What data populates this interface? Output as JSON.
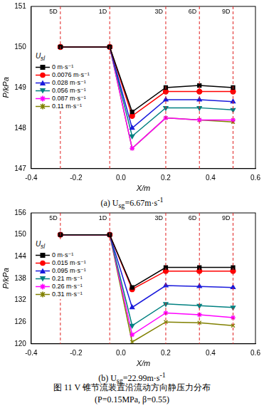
{
  "chart_data": [
    {
      "type": "line",
      "x_label": "X/m",
      "y_label": "P/kPa",
      "caption": [
        {
          "text": "(a)  U"
        },
        {
          "sub": "sg"
        },
        {
          "text": "=6.67m·s"
        },
        {
          "sup": "-1"
        }
      ],
      "legend_title": [
        {
          "text": "U"
        },
        {
          "sub": "sl"
        }
      ],
      "legend": "upper left",
      "grid": false,
      "x": [
        -0.27,
        -0.05,
        0.05,
        0.2,
        0.35,
        0.5
      ],
      "xlim": [
        -0.4,
        0.6
      ],
      "xticks": [
        -0.4,
        -0.2,
        {
          "value": 0,
          "label": "0.0"
        },
        0.2,
        0.4,
        0.6
      ],
      "ylim": [
        147,
        151
      ],
      "yticks": [
        147,
        148,
        149,
        150,
        151
      ],
      "annotations": [
        {
          "x": -0.27,
          "label": "5D"
        },
        {
          "x": -0.05,
          "label": "1D"
        },
        {
          "x": 0.2,
          "label": "3D"
        },
        {
          "x": 0.35,
          "label": "6D"
        },
        {
          "x": 0.5,
          "label": "9D"
        }
      ],
      "series": [
        {
          "name": "0 m·s⁻¹",
          "color": "#000000",
          "marker": "square",
          "values": [
            150.0,
            150.0,
            148.4,
            149.0,
            149.05,
            149.0
          ]
        },
        {
          "name": "0.0076 m·s⁻¹",
          "color": "#ff0000",
          "marker": "circle",
          "values": [
            150.0,
            150.0,
            148.3,
            148.9,
            148.9,
            148.9
          ]
        },
        {
          "name": "0.028 m·s⁻¹",
          "color": "#1a1adc",
          "marker": "triangle",
          "values": [
            150.0,
            150.0,
            148.0,
            148.7,
            148.7,
            148.65
          ]
        },
        {
          "name": "0.056 m·s⁻¹",
          "color": "#008080",
          "marker": "triangle-down",
          "values": [
            150.0,
            150.0,
            147.8,
            148.5,
            148.5,
            148.45
          ]
        },
        {
          "name": "0.087 m·s⁻¹",
          "color": "#ff00ff",
          "marker": "star",
          "values": [
            150.0,
            150.0,
            147.5,
            148.25,
            148.2,
            148.2
          ]
        },
        {
          "name": "0.11 m·s⁻¹",
          "color": "#808000",
          "marker": "asterisk",
          "values": [
            150.0,
            150.0,
            147.5,
            148.25,
            148.2,
            148.15
          ]
        }
      ]
    },
    {
      "type": "line",
      "x_label": "X/m",
      "y_label": "P/kPa",
      "caption": [
        {
          "text": "(b)  U"
        },
        {
          "sub": "sg"
        },
        {
          "text": "=22.99m·s"
        },
        {
          "sup": "-1"
        }
      ],
      "legend_title": [
        {
          "text": "U"
        },
        {
          "sub": "sl"
        }
      ],
      "legend": "upper left",
      "grid": false,
      "x": [
        -0.27,
        -0.05,
        0.05,
        0.2,
        0.35,
        0.5
      ],
      "xlim": [
        -0.4,
        0.6
      ],
      "xticks": [
        -0.4,
        -0.2,
        {
          "value": 0,
          "label": "0.0"
        },
        0.2,
        0.4,
        0.6
      ],
      "ylim": [
        120,
        156
      ],
      "yticks": [
        120,
        126,
        132,
        138,
        144,
        150,
        156
      ],
      "annotations": [
        {
          "x": -0.27,
          "label": "5D"
        },
        {
          "x": -0.05,
          "label": "1D"
        },
        {
          "x": 0.2,
          "label": "3D"
        },
        {
          "x": 0.35,
          "label": "6D"
        },
        {
          "x": 0.5,
          "label": "9D"
        }
      ],
      "series": [
        {
          "name": "0 m·s⁻¹",
          "color": "#000000",
          "marker": "square",
          "values": [
            150.0,
            150.0,
            135.5,
            141.0,
            141.0,
            141.0
          ]
        },
        {
          "name": "0.015 m·s⁻¹",
          "color": "#ff0000",
          "marker": "circle",
          "values": [
            150.0,
            150.0,
            135.0,
            140.0,
            140.0,
            140.0
          ]
        },
        {
          "name": "0.095 m·s⁻¹",
          "color": "#1a1adc",
          "marker": "triangle",
          "values": [
            150.0,
            150.0,
            130.0,
            136.0,
            135.8,
            135.5
          ]
        },
        {
          "name": "0.21 m·s⁻¹",
          "color": "#008080",
          "marker": "triangle-down",
          "values": [
            150.0,
            150.0,
            125.0,
            131.0,
            130.5,
            130.0
          ]
        },
        {
          "name": "0.26 m·s⁻¹",
          "color": "#ff00ff",
          "marker": "star",
          "values": [
            150.0,
            150.0,
            122.5,
            128.5,
            128.0,
            127.2
          ]
        },
        {
          "name": "0.31 m·s⁻¹",
          "color": "#808000",
          "marker": "asterisk",
          "values": [
            150.0,
            150.0,
            120.5,
            126.0,
            125.8,
            125.0
          ]
        }
      ]
    }
  ],
  "figure_caption": [
    "图 11   V 锥节流装置沿流动方向静压力分布",
    "(P=0.15MPa, β=0.55)"
  ]
}
